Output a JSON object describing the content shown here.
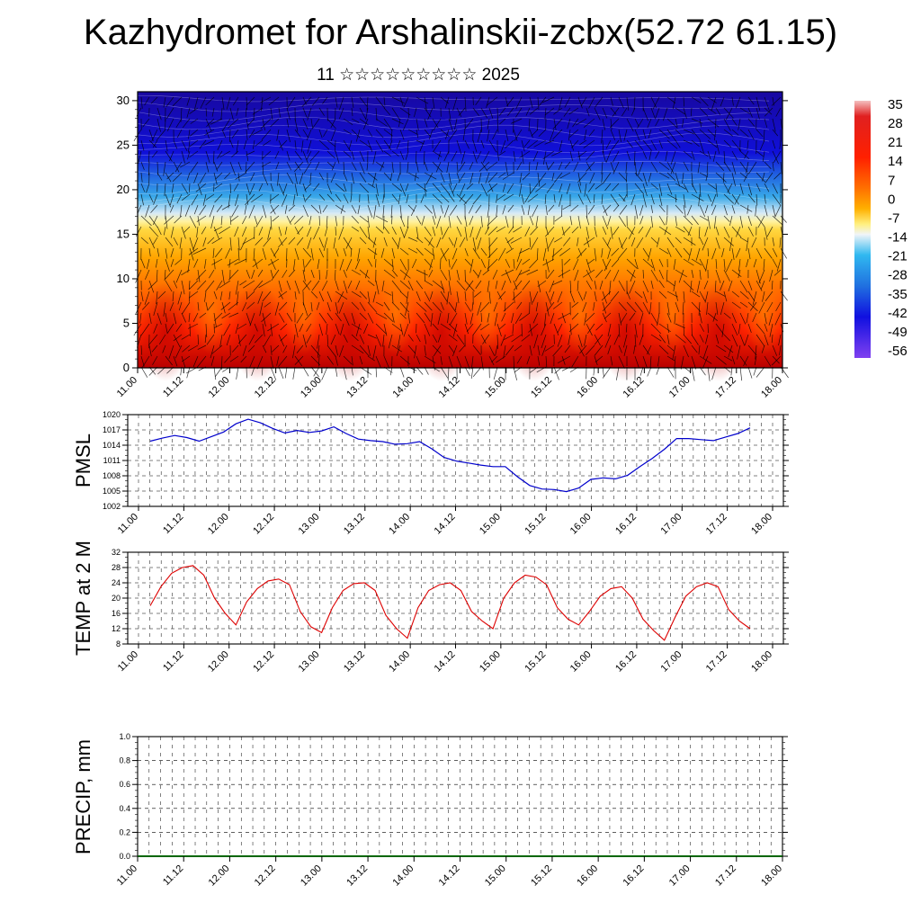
{
  "title": "Kazhydromet for Arshalinskii-zcbx(52.72 61.15)",
  "subtitle": "11 ☆☆☆☆☆☆☆☆☆ 2025",
  "chart_data": [
    {
      "type": "heatmap",
      "name": "vertical-profile",
      "xticks": [
        "11.00",
        "11.12",
        "12.00",
        "12.12",
        "13.00",
        "13.12",
        "14.00",
        "14.12",
        "15.00",
        "15.12",
        "16.00",
        "16.12",
        "17.00",
        "17.12",
        "18.00"
      ],
      "yticks": [
        "0",
        "5",
        "10",
        "15",
        "20",
        "25",
        "30"
      ],
      "ylim": [
        0,
        31
      ],
      "colorbar": [
        "35",
        "28",
        "21",
        "14",
        "7",
        "0",
        "-7",
        "-14",
        "-21",
        "-28",
        "-35",
        "-42",
        "-49",
        "-56"
      ],
      "colors": {
        "hot": "#b00000",
        "warm": "#ff6000",
        "mild": "#ffc020",
        "neutral": "#fff0a0",
        "cool": "#40a0e0",
        "cold": "#1010e0",
        "frigid": "#1a0a90"
      }
    },
    {
      "type": "line",
      "name": "pmsl",
      "ylabel": "PMSL",
      "ylim": [
        1002,
        1020
      ],
      "yticks": [
        "1020",
        "1017",
        "1014",
        "1011",
        "1008",
        "1005",
        "1002"
      ],
      "xticks": [
        "11.00",
        "11.12",
        "12.00",
        "12.12",
        "13.00",
        "13.12",
        "14.00",
        "14.12",
        "15.00",
        "15.12",
        "16.00",
        "16.12",
        "17.00",
        "17.12",
        "18.00"
      ],
      "color": "#0000cc",
      "values": [
        1014.8,
        1015.4,
        1015.9,
        1015.5,
        1014.8,
        1015.7,
        1016.6,
        1018.2,
        1019.1,
        1018.4,
        1017.3,
        1016.4,
        1016.9,
        1016.5,
        1016.8,
        1017.6,
        1016.3,
        1015.2,
        1014.9,
        1014.7,
        1014.2,
        1014.3,
        1014.7,
        1013.3,
        1011.6,
        1010.9,
        1010.5,
        1010.1,
        1009.8,
        1009.8,
        1007.8,
        1006.1,
        1005.4,
        1005.3,
        1004.9,
        1005.6,
        1007.3,
        1007.6,
        1007.4,
        1008.1,
        1009.8,
        1011.4,
        1013.2,
        1015.3,
        1015.3,
        1015.1,
        1014.9,
        1015.6,
        1016.3,
        1017.4
      ]
    },
    {
      "type": "line",
      "name": "temp-2m",
      "ylabel": "TEMP at 2 M",
      "ylim": [
        8,
        32
      ],
      "yticks": [
        "32",
        "28",
        "24",
        "20",
        "16",
        "12",
        "8"
      ],
      "xticks": [
        "11.00",
        "11.12",
        "12.00",
        "12.12",
        "13.00",
        "13.12",
        "14.00",
        "14.12",
        "15.00",
        "15.12",
        "16.00",
        "16.12",
        "17.00",
        "17.12",
        "18.00"
      ],
      "color": "#dd0000",
      "values": [
        18.0,
        23.0,
        26.5,
        28.0,
        28.5,
        26.0,
        20.0,
        16.0,
        13.0,
        19.0,
        22.5,
        24.5,
        25.0,
        23.5,
        16.5,
        12.5,
        11.0,
        17.5,
        22.0,
        23.8,
        24.0,
        22.0,
        15.5,
        12.0,
        9.5,
        17.5,
        22.0,
        23.5,
        24.0,
        22.0,
        16.5,
        14.0,
        12.0,
        20.0,
        24.0,
        26.0,
        25.5,
        23.5,
        17.5,
        14.5,
        13.0,
        16.5,
        20.5,
        22.5,
        23.0,
        20.0,
        14.5,
        11.5,
        9.0,
        15.0,
        20.5,
        23.0,
        24.0,
        23.0,
        17.0,
        14.0,
        12.0
      ]
    },
    {
      "type": "bar",
      "name": "precip",
      "ylabel": "PRECIP, mm",
      "ylim": [
        0,
        1
      ],
      "yticks": [
        "1.0",
        "0.8",
        "0.6",
        "0.4",
        "0.2",
        "0.0"
      ],
      "xticks": [
        "11.00",
        "11.12",
        "12.00",
        "12.12",
        "13.00",
        "13.12",
        "14.00",
        "14.12",
        "15.00",
        "15.12",
        "16.00",
        "16.12",
        "17.00",
        "17.12",
        "18.00"
      ],
      "color": "#006600",
      "values": []
    }
  ]
}
